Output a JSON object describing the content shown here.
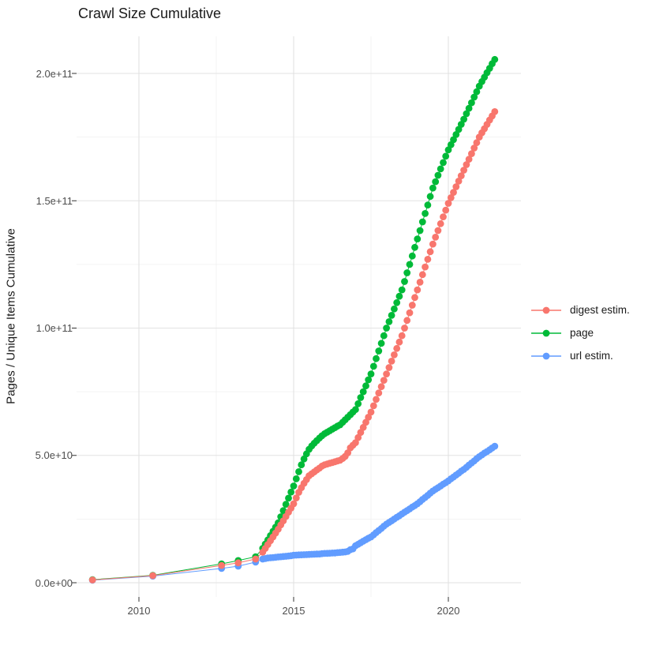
{
  "title": "Crawl Size Cumulative",
  "legend": {
    "items": [
      {
        "label": "digest estim.",
        "color": "#F8766D"
      },
      {
        "label": "page",
        "color": "#00BA38"
      },
      {
        "label": "url estim.",
        "color": "#619CFF"
      }
    ]
  },
  "chart_data": {
    "type": "scatter",
    "title": "Crawl Size Cumulative",
    "xlabel": "",
    "ylabel": "Pages / Unique Items Cumulative",
    "x_ticks": [
      2010,
      2015,
      2020
    ],
    "x_tick_labels": [
      "2010",
      "2015",
      "2020"
    ],
    "x_minor_gridlines": [
      2012.5,
      2017.5
    ],
    "y_ticks_e9": [
      0,
      50,
      100,
      150,
      200
    ],
    "y_tick_labels": [
      "0.0e+00",
      "5.0e+10",
      "1.0e+11",
      "1.5e+11",
      "2.0e+11"
    ],
    "y_minor_gridlines_e9": [
      25,
      75,
      125,
      175
    ],
    "xlim": [
      2008.0,
      2022.35
    ],
    "ylim_e9": [
      -5.5,
      214.6
    ],
    "grid": true,
    "legend_position": "right",
    "values_unit": "counts, stored as billions (1e9)",
    "point_spacing": "sparse yearly crawls 2008-2013, then monthly points 2014-01 through 2021-07 at step 1/12 year",
    "draw_order": [
      "page",
      "url estim.",
      "digest estim."
    ],
    "series": [
      {
        "name": "page",
        "color": "#00BA38",
        "early_points": [
          [
            2008.5,
            1.2
          ],
          [
            2010.45,
            2.9
          ],
          [
            2012.67,
            7.4
          ],
          [
            2013.21,
            8.7
          ],
          [
            2013.77,
            10.2
          ]
        ],
        "monthly_start_year": 2014.0,
        "monthly_step_years": 0.083333,
        "monthly_values_e9": [
          13.5,
          15.2,
          16.8,
          18.5,
          20.2,
          21.8,
          23.5,
          25.9,
          28.3,
          30.8,
          33.2,
          35.6,
          38.0,
          40.8,
          43.6,
          46.3,
          48.6,
          50.6,
          52.4,
          53.7,
          54.8,
          55.8,
          56.8,
          57.7,
          58.5,
          59.1,
          59.7,
          60.3,
          60.9,
          61.5,
          62.0,
          63.0,
          64.0,
          65.0,
          66.0,
          67.0,
          68.0,
          70.3,
          72.7,
          75.0,
          77.3,
          79.7,
          82.0,
          85.0,
          88.0,
          91.0,
          94.0,
          97.0,
          100.0,
          102.5,
          105.0,
          107.5,
          110.0,
          112.5,
          115.0,
          118.3,
          121.7,
          125.0,
          128.3,
          131.7,
          135.0,
          138.3,
          141.7,
          145.0,
          148.3,
          151.7,
          155.0,
          157.5,
          160.0,
          162.5,
          165.0,
          167.5,
          170.0,
          172.0,
          174.0,
          176.0,
          178.0,
          180.0,
          182.0,
          184.2,
          186.3,
          188.5,
          190.7,
          192.8,
          195.0,
          196.8,
          198.5,
          200.3,
          202.0,
          203.8,
          205.5
        ]
      },
      {
        "name": "url estim.",
        "color": "#619CFF",
        "early_points": [
          [
            2008.5,
            1.0
          ],
          [
            2010.45,
            2.6
          ],
          [
            2012.67,
            5.6
          ],
          [
            2013.21,
            6.5
          ],
          [
            2013.77,
            8.1
          ]
        ],
        "monthly_start_year": 2014.0,
        "monthly_step_years": 0.083333,
        "monthly_values_e9": [
          9.3,
          9.5,
          9.7,
          9.8,
          9.9,
          10.0,
          10.1,
          10.2,
          10.3,
          10.4,
          10.5,
          10.6,
          10.8,
          10.85,
          10.9,
          10.95,
          11.0,
          11.05,
          11.1,
          11.15,
          11.2,
          11.25,
          11.3,
          11.4,
          11.5,
          11.55,
          11.6,
          11.65,
          11.7,
          11.8,
          11.9,
          12.0,
          12.1,
          12.3,
          13.0,
          13.3,
          14.5,
          15.1,
          15.7,
          16.3,
          16.9,
          17.5,
          18.0,
          18.8,
          19.7,
          20.5,
          21.3,
          22.2,
          23.0,
          23.7,
          24.3,
          25.0,
          25.7,
          26.3,
          27.0,
          27.7,
          28.3,
          29.0,
          29.7,
          30.3,
          31.0,
          31.8,
          32.7,
          33.5,
          34.3,
          35.2,
          36.0,
          36.7,
          37.3,
          38.0,
          38.7,
          39.3,
          40.0,
          40.8,
          41.5,
          42.3,
          43.0,
          43.8,
          44.5,
          45.3,
          46.2,
          47.0,
          47.8,
          48.7,
          49.5,
          50.2,
          50.9,
          51.5,
          52.2,
          52.9,
          53.6
        ]
      },
      {
        "name": "digest estim.",
        "color": "#F8766D",
        "early_points": [
          [
            2008.5,
            1.1
          ],
          [
            2010.45,
            2.8
          ],
          [
            2012.67,
            6.8
          ],
          [
            2013.21,
            7.8
          ],
          [
            2013.77,
            9.3
          ]
        ],
        "monthly_start_year": 2014.0,
        "monthly_step_years": 0.083333,
        "monthly_values_e9": [
          12.0,
          13.5,
          15.0,
          16.5,
          18.0,
          19.5,
          21.0,
          22.7,
          24.3,
          26.0,
          27.7,
          29.3,
          31.0,
          33.3,
          35.5,
          37.3,
          39.0,
          40.5,
          42.0,
          42.8,
          43.5,
          44.3,
          45.0,
          45.8,
          46.3,
          46.6,
          46.9,
          47.2,
          47.5,
          47.8,
          48.1,
          48.8,
          49.6,
          51.0,
          53.0,
          54.0,
          55.0,
          57.0,
          59.0,
          61.0,
          63.0,
          65.0,
          67.0,
          69.5,
          72.0,
          74.5,
          77.0,
          79.5,
          82.0,
          84.5,
          87.0,
          89.5,
          92.0,
          94.5,
          97.0,
          100.0,
          103.0,
          106.0,
          109.0,
          112.0,
          115.0,
          118.0,
          121.0,
          124.0,
          127.0,
          130.0,
          133.0,
          135.7,
          138.3,
          141.0,
          143.7,
          146.3,
          149.0,
          151.2,
          153.3,
          155.5,
          157.7,
          159.8,
          162.0,
          164.2,
          166.3,
          168.5,
          170.7,
          172.8,
          175.0,
          176.7,
          178.3,
          180.0,
          181.7,
          183.3,
          185.0
        ]
      }
    ]
  },
  "style": {
    "major_grid_color": "#e2e2e2",
    "minor_grid_color": "#f0f0f0",
    "tick_mark_color": "#333333",
    "tick_label_color": "#4d4d4d",
    "background": "#ffffff"
  }
}
